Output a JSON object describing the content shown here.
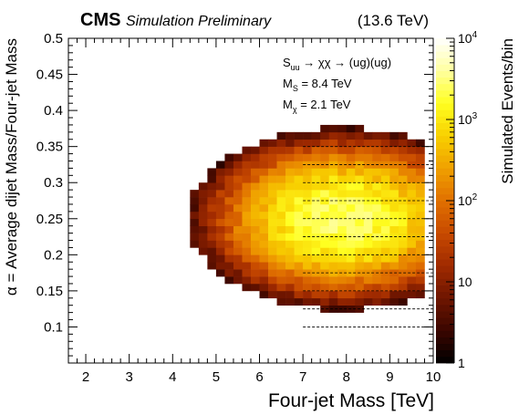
{
  "header": {
    "experiment": "CMS",
    "status": "Simulation Preliminary",
    "energy": "(13.6 TeV)"
  },
  "annotations": {
    "process_parts": [
      "S",
      "uu",
      " → χχ → (ug)(ug)"
    ],
    "ms_parts": [
      "M",
      "S",
      " = 8.4 TeV"
    ],
    "mchi_parts": [
      "M",
      "χ",
      " = 2.1 TeV"
    ]
  },
  "chart_data": {
    "type": "heatmap",
    "xlabel": "Four-jet Mass [TeV]",
    "ylabel": "α = Average dijet Mass/Four-jet Mass",
    "zlabel": "Simulated Events/bin",
    "xlim": [
      1.6,
      10
    ],
    "ylim": [
      0.05,
      0.5
    ],
    "zlim": [
      1,
      10000
    ],
    "zscale": "log",
    "x_ticks": [
      "2",
      "3",
      "4",
      "5",
      "6",
      "7",
      "8",
      "9",
      "10"
    ],
    "x_tick_values": [
      2,
      3,
      4,
      5,
      6,
      7,
      8,
      9,
      10
    ],
    "y_ticks": [
      "0.1",
      "0.15",
      "0.2",
      "0.25",
      "0.3",
      "0.35",
      "0.4",
      "0.45",
      "0.5"
    ],
    "y_tick_values": [
      0.1,
      0.15,
      0.2,
      0.25,
      0.3,
      0.35,
      0.4,
      0.45,
      0.5
    ],
    "z_ticks": [
      {
        "base": "1",
        "exp": "",
        "value": 1
      },
      {
        "base": "10",
        "exp": "",
        "value": 10
      },
      {
        "base": "10",
        "exp": "2",
        "value": 100
      },
      {
        "base": "10",
        "exp": "3",
        "value": 1000
      },
      {
        "base": "10",
        "exp": "4",
        "value": 10000
      }
    ],
    "dashed_alpha_lines": [
      0.1,
      0.125,
      0.15,
      0.175,
      0.2,
      0.225,
      0.25,
      0.275,
      0.3,
      0.325,
      0.35
    ],
    "dashed_line_xmin": 7.0,
    "colormap": [
      "#000000",
      "#3a0600",
      "#6e1500",
      "#a02a00",
      "#c84a00",
      "#e07000",
      "#f0a000",
      "#f8d000",
      "#ffff20",
      "#ffffa0",
      "#ffffff"
    ],
    "bins": {
      "x_start": 1.6,
      "x_width": 0.2,
      "y_start": 0.05,
      "y_width": 0.01,
      "peak": {
        "x": 7.9,
        "y": 0.25,
        "value": 3000
      }
    }
  }
}
